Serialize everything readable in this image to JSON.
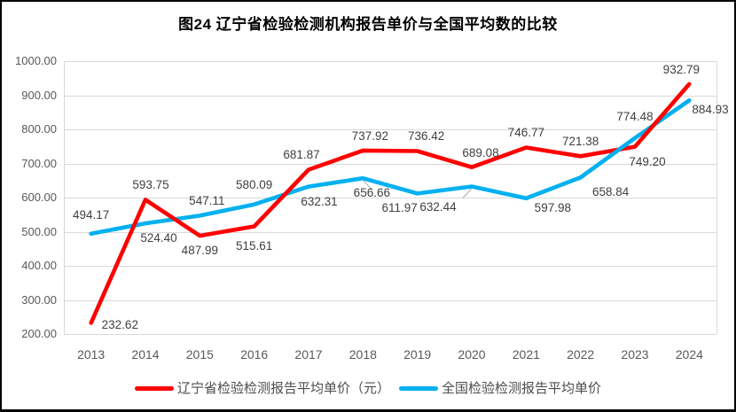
{
  "chart_data": {
    "type": "line",
    "title": "图24 辽宁省检验检测机构报告单价与全国平均数的比较",
    "categories": [
      "2013",
      "2014",
      "2015",
      "2016",
      "2017",
      "2018",
      "2019",
      "2020",
      "2021",
      "2022",
      "2023",
      "2024"
    ],
    "series": [
      {
        "name": "辽宁省检验检测报告平均单价（元）",
        "color": "#FE0000",
        "values": [
          232.62,
          593.75,
          487.99,
          515.61,
          681.87,
          737.92,
          736.42,
          689.08,
          746.77,
          721.38,
          749.2,
          932.79
        ]
      },
      {
        "name": "全国检验检测报告平均单价",
        "color": "#00B0F0",
        "values": [
          494.17,
          524.4,
          547.11,
          580.09,
          632.31,
          656.66,
          611.97,
          632.44,
          597.98,
          658.84,
          774.48,
          884.93
        ]
      }
    ],
    "ylim": [
      200,
      1000
    ],
    "ytick_step": 100,
    "ytick_format": "two-decimals",
    "xlabel": "",
    "ylabel": "",
    "grid": "horizontal",
    "gridline_color": "#D9D9D9",
    "axis_text_color": "#595959",
    "data_label_color": "#3F3F3F",
    "legend_position": "bottom",
    "data_labels": true
  }
}
